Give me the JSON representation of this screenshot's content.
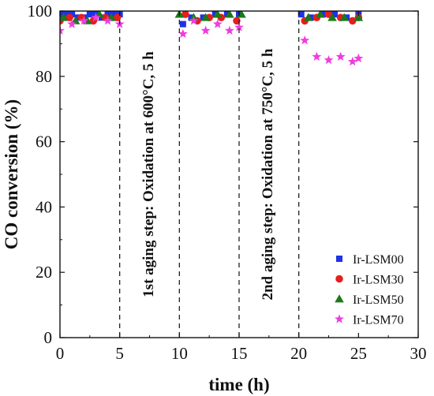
{
  "chart_data": {
    "type": "scatter",
    "xlabel": "time (h)",
    "ylabel": "CO conversion (%)",
    "xlim": [
      0,
      30
    ],
    "ylim": [
      0,
      100
    ],
    "xticks": [
      0,
      5,
      10,
      15,
      20,
      25,
      30
    ],
    "yticks": [
      0,
      20,
      40,
      60,
      80,
      100
    ],
    "grid": false,
    "legend_position": "bottom-right",
    "vlines": [
      5,
      10,
      15,
      20
    ],
    "annotations": [
      {
        "text": "1st aging step: Oxidation at 600°C, 5 h",
        "x": 7.5
      },
      {
        "text": "2nd aging step: Oxidation at 750°C, 5 h",
        "x": 17.5
      }
    ],
    "series": [
      {
        "name": "Ir-LSM00",
        "marker": "square",
        "color": "#1f32e6",
        "points": [
          [
            0,
            99
          ],
          [
            0.5,
            99
          ],
          [
            1.0,
            99
          ],
          [
            1.5,
            98
          ],
          [
            2.0,
            98
          ],
          [
            2.5,
            99
          ],
          [
            3.0,
            99
          ],
          [
            3.5,
            98
          ],
          [
            4.0,
            99
          ],
          [
            4.5,
            99
          ],
          [
            5.0,
            99
          ],
          [
            10.3,
            96
          ],
          [
            11.0,
            98
          ],
          [
            12.0,
            98
          ],
          [
            13.0,
            99
          ],
          [
            14.0,
            99
          ],
          [
            15.0,
            99
          ],
          [
            20.2,
            99
          ],
          [
            21.0,
            98
          ],
          [
            22.0,
            99
          ],
          [
            23.0,
            99
          ],
          [
            24.0,
            98
          ],
          [
            25.0,
            99
          ]
        ]
      },
      {
        "name": "Ir-LSM30",
        "marker": "circle",
        "color": "#e61e1e",
        "points": [
          [
            0,
            97
          ],
          [
            0.8,
            98
          ],
          [
            1.8,
            98
          ],
          [
            2.8,
            97
          ],
          [
            3.8,
            98
          ],
          [
            4.8,
            98
          ],
          [
            10.5,
            99
          ],
          [
            11.5,
            97
          ],
          [
            12.5,
            98
          ],
          [
            13.5,
            98
          ],
          [
            14.8,
            97
          ],
          [
            20.5,
            97
          ],
          [
            21.5,
            98
          ],
          [
            22.5,
            99
          ],
          [
            23.5,
            98
          ],
          [
            24.5,
            97
          ],
          [
            25.0,
            98
          ]
        ]
      },
      {
        "name": "Ir-LSM50",
        "marker": "triangle",
        "color": "#1a7a1a",
        "points": [
          [
            0.3,
            98
          ],
          [
            1.3,
            97
          ],
          [
            2.3,
            97
          ],
          [
            3.3,
            99
          ],
          [
            4.3,
            98
          ],
          [
            10.0,
            99
          ],
          [
            11.2,
            98
          ],
          [
            12.2,
            98
          ],
          [
            13.2,
            99
          ],
          [
            14.2,
            99
          ],
          [
            15.2,
            99
          ],
          [
            20.8,
            98
          ],
          [
            21.8,
            99
          ],
          [
            22.8,
            98
          ],
          [
            23.8,
            98
          ],
          [
            25.0,
            98
          ]
        ]
      },
      {
        "name": "Ir-LSM70",
        "marker": "star",
        "color": "#f03ce0",
        "points": [
          [
            0,
            94
          ],
          [
            1.0,
            96
          ],
          [
            2.0,
            97
          ],
          [
            3.0,
            98
          ],
          [
            4.0,
            97
          ],
          [
            5.0,
            96
          ],
          [
            10.3,
            93
          ],
          [
            11.2,
            97
          ],
          [
            12.2,
            94
          ],
          [
            13.2,
            96
          ],
          [
            14.2,
            94
          ],
          [
            15.0,
            95
          ],
          [
            20.5,
            91
          ],
          [
            21.5,
            86
          ],
          [
            22.5,
            85
          ],
          [
            23.5,
            86
          ],
          [
            24.5,
            84.5
          ],
          [
            25.0,
            85.5
          ]
        ]
      }
    ]
  }
}
